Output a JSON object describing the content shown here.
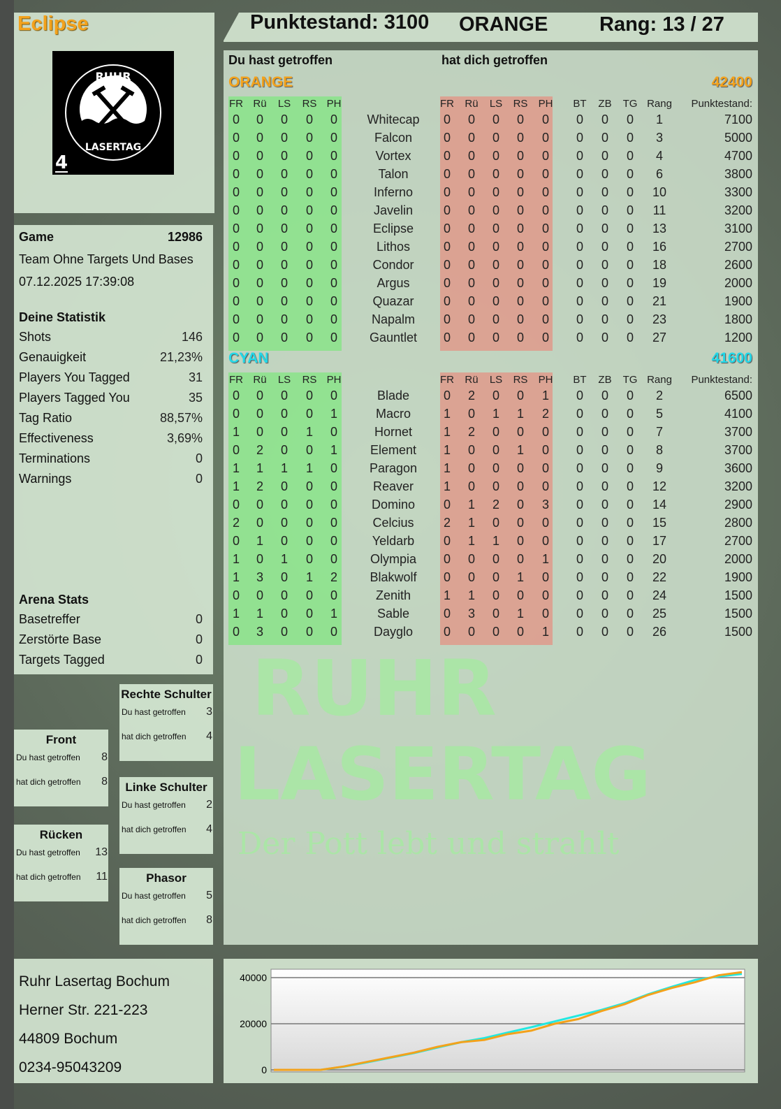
{
  "player": {
    "name": "Eclipse",
    "badge_number": "4",
    "logo_text": "RUHR LASERTAG"
  },
  "header": {
    "score": "Punktestand: 3100",
    "team": "ORANGE",
    "rank": "Rang: 13 / 27"
  },
  "columns": {
    "you_hit": "Du hast getroffen",
    "hit_you": "hat dich getroffen",
    "hit_cols": [
      "FR",
      "Rü",
      "LS",
      "RS",
      "PH"
    ],
    "extra_cols": [
      "BT",
      "ZB",
      "TG",
      "Rang",
      "Punktestand:"
    ]
  },
  "teams": [
    {
      "name": "ORANGE",
      "score": "42400",
      "color": "#f3a21c",
      "players": [
        [
          "Whitecap",
          [
            0,
            0,
            0,
            0,
            0
          ],
          [
            0,
            0,
            0,
            0,
            0
          ],
          [
            0,
            0,
            0
          ],
          1,
          7100
        ],
        [
          "Falcon",
          [
            0,
            0,
            0,
            0,
            0
          ],
          [
            0,
            0,
            0,
            0,
            0
          ],
          [
            0,
            0,
            0
          ],
          3,
          5000
        ],
        [
          "Vortex",
          [
            0,
            0,
            0,
            0,
            0
          ],
          [
            0,
            0,
            0,
            0,
            0
          ],
          [
            0,
            0,
            0
          ],
          4,
          4700
        ],
        [
          "Talon",
          [
            0,
            0,
            0,
            0,
            0
          ],
          [
            0,
            0,
            0,
            0,
            0
          ],
          [
            0,
            0,
            0
          ],
          6,
          3800
        ],
        [
          "Inferno",
          [
            0,
            0,
            0,
            0,
            0
          ],
          [
            0,
            0,
            0,
            0,
            0
          ],
          [
            0,
            0,
            0
          ],
          10,
          3300
        ],
        [
          "Javelin",
          [
            0,
            0,
            0,
            0,
            0
          ],
          [
            0,
            0,
            0,
            0,
            0
          ],
          [
            0,
            0,
            0
          ],
          11,
          3200
        ],
        [
          "Eclipse",
          [
            0,
            0,
            0,
            0,
            0
          ],
          [
            0,
            0,
            0,
            0,
            0
          ],
          [
            0,
            0,
            0
          ],
          13,
          3100
        ],
        [
          "Lithos",
          [
            0,
            0,
            0,
            0,
            0
          ],
          [
            0,
            0,
            0,
            0,
            0
          ],
          [
            0,
            0,
            0
          ],
          16,
          2700
        ],
        [
          "Condor",
          [
            0,
            0,
            0,
            0,
            0
          ],
          [
            0,
            0,
            0,
            0,
            0
          ],
          [
            0,
            0,
            0
          ],
          18,
          2600
        ],
        [
          "Argus",
          [
            0,
            0,
            0,
            0,
            0
          ],
          [
            0,
            0,
            0,
            0,
            0
          ],
          [
            0,
            0,
            0
          ],
          19,
          2000
        ],
        [
          "Quazar",
          [
            0,
            0,
            0,
            0,
            0
          ],
          [
            0,
            0,
            0,
            0,
            0
          ],
          [
            0,
            0,
            0
          ],
          21,
          1900
        ],
        [
          "Napalm",
          [
            0,
            0,
            0,
            0,
            0
          ],
          [
            0,
            0,
            0,
            0,
            0
          ],
          [
            0,
            0,
            0
          ],
          23,
          1800
        ],
        [
          "Gauntlet",
          [
            0,
            0,
            0,
            0,
            0
          ],
          [
            0,
            0,
            0,
            0,
            0
          ],
          [
            0,
            0,
            0
          ],
          27,
          1200
        ]
      ]
    },
    {
      "name": "CYAN",
      "score": "41600",
      "color": "#22d8e8",
      "players": [
        [
          "Blade",
          [
            0,
            0,
            0,
            0,
            0
          ],
          [
            0,
            2,
            0,
            0,
            1
          ],
          [
            0,
            0,
            0
          ],
          2,
          6500
        ],
        [
          "Macro",
          [
            0,
            0,
            0,
            0,
            1
          ],
          [
            1,
            0,
            1,
            1,
            2
          ],
          [
            0,
            0,
            0
          ],
          5,
          4100
        ],
        [
          "Hornet",
          [
            1,
            0,
            0,
            1,
            0
          ],
          [
            1,
            2,
            0,
            0,
            0
          ],
          [
            0,
            0,
            0
          ],
          7,
          3700
        ],
        [
          "Element",
          [
            0,
            2,
            0,
            0,
            1
          ],
          [
            1,
            0,
            0,
            1,
            0
          ],
          [
            0,
            0,
            0
          ],
          8,
          3700
        ],
        [
          "Paragon",
          [
            1,
            1,
            1,
            1,
            0
          ],
          [
            1,
            0,
            0,
            0,
            0
          ],
          [
            0,
            0,
            0
          ],
          9,
          3600
        ],
        [
          "Reaver",
          [
            1,
            2,
            0,
            0,
            0
          ],
          [
            1,
            0,
            0,
            0,
            0
          ],
          [
            0,
            0,
            0
          ],
          12,
          3200
        ],
        [
          "Domino",
          [
            0,
            0,
            0,
            0,
            0
          ],
          [
            0,
            1,
            2,
            0,
            3
          ],
          [
            0,
            0,
            0
          ],
          14,
          2900
        ],
        [
          "Celcius",
          [
            2,
            0,
            0,
            0,
            0
          ],
          [
            2,
            1,
            0,
            0,
            0
          ],
          [
            0,
            0,
            0
          ],
          15,
          2800
        ],
        [
          "Yeldarb",
          [
            0,
            1,
            0,
            0,
            0
          ],
          [
            0,
            1,
            1,
            0,
            0
          ],
          [
            0,
            0,
            0
          ],
          17,
          2700
        ],
        [
          "Olympia",
          [
            1,
            0,
            1,
            0,
            0
          ],
          [
            0,
            0,
            0,
            0,
            1
          ],
          [
            0,
            0,
            0
          ],
          20,
          2000
        ],
        [
          "Blakwolf",
          [
            1,
            3,
            0,
            1,
            2
          ],
          [
            0,
            0,
            0,
            1,
            0
          ],
          [
            0,
            0,
            0
          ],
          22,
          1900
        ],
        [
          "Zenith",
          [
            0,
            0,
            0,
            0,
            0
          ],
          [
            1,
            1,
            0,
            0,
            0
          ],
          [
            0,
            0,
            0
          ],
          24,
          1500
        ],
        [
          "Sable",
          [
            1,
            1,
            0,
            0,
            1
          ],
          [
            0,
            3,
            0,
            1,
            0
          ],
          [
            0,
            0,
            0
          ],
          25,
          1500
        ],
        [
          "Dayglo",
          [
            0,
            3,
            0,
            0,
            0
          ],
          [
            0,
            0,
            0,
            0,
            1
          ],
          [
            0,
            0,
            0
          ],
          26,
          1500
        ]
      ]
    }
  ],
  "game": {
    "label": "Game",
    "id": "12986",
    "mode": "Team Ohne Targets Und Bases",
    "datetime": "07.12.2025 17:39:08"
  },
  "stats": {
    "title": "Deine Statistik",
    "rows": [
      [
        "Shots",
        "146"
      ],
      [
        "Genauigkeit",
        "21,23%"
      ],
      [
        "Players You Tagged",
        "31"
      ],
      [
        "Players Tagged You",
        "35"
      ],
      [
        "Tag Ratio",
        "88,57%"
      ],
      [
        "Effectiveness",
        "3,69%"
      ],
      [
        "Terminations",
        "0"
      ],
      [
        "Warnings",
        "0"
      ]
    ]
  },
  "arena": {
    "title": "Arena Stats",
    "rows": [
      [
        "Basetreffer",
        "0"
      ],
      [
        "Zerstörte Base",
        "0"
      ],
      [
        "Targets Tagged",
        "0"
      ]
    ]
  },
  "zones": [
    {
      "name": "Front",
      "you_hit": "8",
      "hit_you": "8"
    },
    {
      "name": "Rücken",
      "you_hit": "13",
      "hit_you": "11"
    },
    {
      "name": "Rechte Schulter",
      "you_hit": "3",
      "hit_you": "4"
    },
    {
      "name": "Linke Schulter",
      "you_hit": "2",
      "hit_you": "4"
    },
    {
      "name": "Phasor",
      "you_hit": "5",
      "hit_you": "8"
    }
  ],
  "zone_labels": {
    "you_hit": "Du hast getroffen",
    "hit_you": "hat dich getroffen"
  },
  "venue": {
    "name": "Ruhr Lasertag Bochum",
    "street": "Herner Str. 221-223",
    "city": "44809 Bochum",
    "phone": "0234-95043209"
  },
  "watermark": {
    "line1": "RUHR",
    "line2": "LASERTAG",
    "tagline": "Der Pott lebt und strahlt"
  },
  "chart_data": {
    "type": "line",
    "ylim": [
      0,
      44000
    ],
    "yticks": [
      0,
      20000,
      40000
    ],
    "grid": true,
    "series": [
      {
        "color": "#f3a21c",
        "values": [
          0,
          0,
          0,
          1500,
          3500,
          5500,
          7500,
          10000,
          12000,
          13000,
          15500,
          17000,
          20000,
          22000,
          25500,
          28500,
          32500,
          35500,
          38000,
          41000,
          42400
        ]
      },
      {
        "color": "#22e8e0",
        "values": [
          0,
          0,
          0,
          1400,
          3300,
          5300,
          7300,
          9700,
          12000,
          13800,
          16200,
          18500,
          21000,
          23500,
          26000,
          29000,
          32800,
          36000,
          39000,
          40500,
          41600
        ]
      }
    ]
  }
}
